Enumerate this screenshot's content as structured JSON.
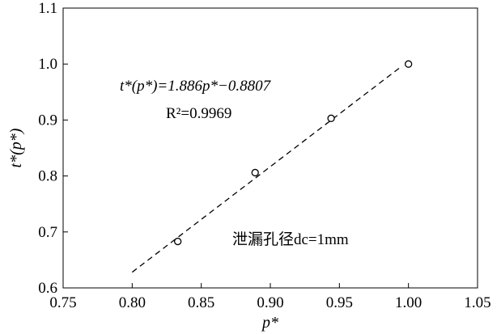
{
  "chart_data": {
    "type": "scatter",
    "xlabel": "p*",
    "ylabel": "t*(p*)",
    "xlim": [
      0.75,
      1.05
    ],
    "ylim": [
      0.6,
      1.1
    ],
    "xticks": [
      "0.75",
      "0.80",
      "0.85",
      "0.90",
      "0.95",
      "1.00",
      "1.05"
    ],
    "yticks": [
      "0.6",
      "0.7",
      "0.8",
      "0.9",
      "1.0",
      "1.1"
    ],
    "points": [
      {
        "x": 0.833,
        "y": 0.683
      },
      {
        "x": 0.889,
        "y": 0.806
      },
      {
        "x": 0.944,
        "y": 0.903
      },
      {
        "x": 1.0,
        "y": 1.0
      }
    ],
    "fit_line": {
      "x_start": 0.8,
      "x_end": 0.995,
      "slope": 1.886,
      "intercept": -0.8807,
      "style": "dashed"
    },
    "annotations": {
      "equation": "t*(p*)=1.886p*−0.8807",
      "r_squared": "R²=0.9969",
      "leak_label": "泄漏孔径dc=1mm"
    },
    "grid": false,
    "marker": "open-circle",
    "legend": "none"
  }
}
